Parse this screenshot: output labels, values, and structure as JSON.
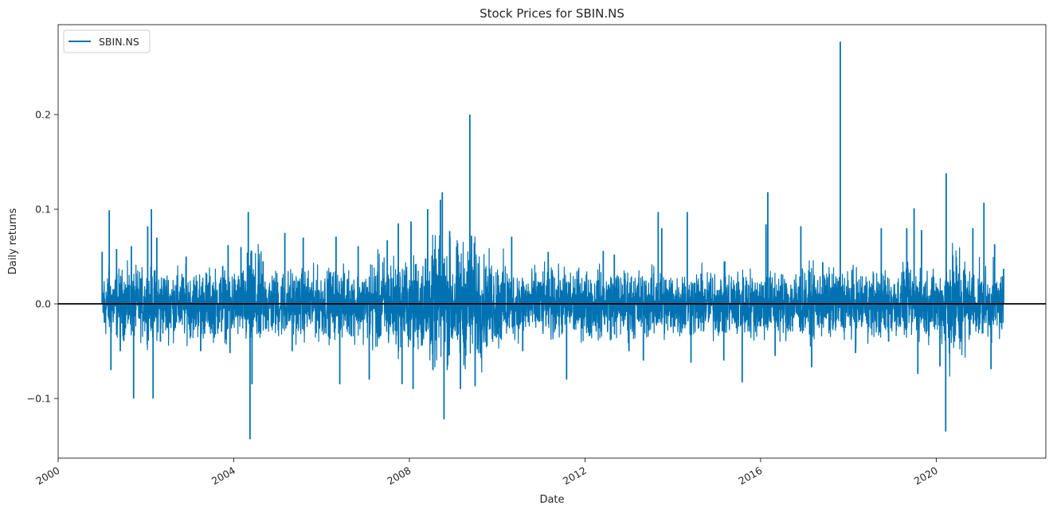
{
  "chart_data": {
    "type": "line",
    "title": "Stock Prices for SBIN.NS",
    "xlabel": "Date",
    "ylabel": "Daily returns",
    "xlim": [
      "2000-01-01",
      "2022-07-01"
    ],
    "ylim": [
      -0.163,
      0.295
    ],
    "x_ticks": [
      "2000-01-01",
      "2004-01-01",
      "2008-01-01",
      "2012-01-01",
      "2016-01-01",
      "2020-01-01"
    ],
    "x_tick_labels": [
      "2000",
      "2004",
      "2008",
      "2012",
      "2016",
      "2020"
    ],
    "y_ticks": [
      -0.1,
      0.0,
      0.1,
      0.2
    ],
    "y_tick_labels": [
      "−0.1",
      "0.0",
      "0.1",
      "0.2"
    ],
    "grid": false,
    "legend": {
      "position": "top-left",
      "entries": [
        "SBIN.NS"
      ]
    },
    "reference_line": {
      "y": 0.0,
      "color": "#000000"
    },
    "colors": {
      "series": "#0072b2",
      "axis": "#000000",
      "background": "#ffffff"
    },
    "series": [
      {
        "name": "SBIN.NS",
        "data_range": [
          "2001-01-01",
          "2021-07-15"
        ],
        "points": [
          [
            "2001-01-01",
            0.055
          ],
          [
            "2001-01-20",
            -0.02
          ],
          [
            "2001-03-01",
            0.099
          ],
          [
            "2001-03-15",
            -0.07
          ],
          [
            "2001-05-01",
            0.058
          ],
          [
            "2001-06-01",
            -0.05
          ],
          [
            "2001-09-01",
            0.061
          ],
          [
            "2001-09-20",
            -0.1
          ],
          [
            "2002-01-15",
            0.082
          ],
          [
            "2002-02-15",
            0.1
          ],
          [
            "2002-03-01",
            -0.1
          ],
          [
            "2002-04-01",
            0.07
          ],
          [
            "2002-05-01",
            -0.04
          ],
          [
            "2002-12-01",
            0.05
          ],
          [
            "2003-04-01",
            -0.05
          ],
          [
            "2003-10-01",
            0.04
          ],
          [
            "2003-11-15",
            0.062
          ],
          [
            "2003-12-01",
            -0.052
          ],
          [
            "2004-03-01",
            0.06
          ],
          [
            "2004-05-01",
            0.097
          ],
          [
            "2004-05-15",
            -0.143
          ],
          [
            "2004-06-01",
            -0.085
          ],
          [
            "2004-09-01",
            0.045
          ],
          [
            "2005-03-01",
            0.075
          ],
          [
            "2005-05-01",
            -0.05
          ],
          [
            "2005-08-01",
            0.07
          ],
          [
            "2006-05-01",
            0.071
          ],
          [
            "2006-06-01",
            -0.085
          ],
          [
            "2006-11-01",
            0.061
          ],
          [
            "2007-02-01",
            -0.08
          ],
          [
            "2007-07-01",
            0.067
          ],
          [
            "2007-10-01",
            0.085
          ],
          [
            "2007-11-01",
            -0.085
          ],
          [
            "2008-01-15",
            0.087
          ],
          [
            "2008-02-01",
            -0.09
          ],
          [
            "2008-06-01",
            0.1
          ],
          [
            "2008-07-15",
            -0.07
          ],
          [
            "2008-09-15",
            0.11
          ],
          [
            "2008-10-01",
            0.118
          ],
          [
            "2008-10-15",
            -0.122
          ],
          [
            "2008-12-01",
            0.077
          ],
          [
            "2009-03-01",
            -0.09
          ],
          [
            "2009-05-18",
            0.2
          ],
          [
            "2009-06-01",
            0.072
          ],
          [
            "2009-07-01",
            -0.087
          ],
          [
            "2010-05-01",
            0.071
          ],
          [
            "2010-08-01",
            -0.05
          ],
          [
            "2011-03-01",
            0.055
          ],
          [
            "2011-08-01",
            -0.08
          ],
          [
            "2012-06-01",
            0.056
          ],
          [
            "2012-09-01",
            0.052
          ],
          [
            "2013-01-01",
            -0.05
          ],
          [
            "2013-05-01",
            -0.06
          ],
          [
            "2013-09-01",
            0.097
          ],
          [
            "2013-10-01",
            0.08
          ],
          [
            "2014-05-01",
            0.097
          ],
          [
            "2014-06-01",
            -0.062
          ],
          [
            "2015-03-01",
            -0.06
          ],
          [
            "2015-08-01",
            -0.083
          ],
          [
            "2016-02-15",
            0.084
          ],
          [
            "2016-03-01",
            0.118
          ],
          [
            "2016-05-01",
            -0.055
          ],
          [
            "2016-12-01",
            0.082
          ],
          [
            "2017-03-01",
            -0.067
          ],
          [
            "2017-06-01",
            0.044
          ],
          [
            "2017-10-25",
            0.277
          ],
          [
            "2018-03-01",
            -0.052
          ],
          [
            "2018-10-01",
            0.08
          ],
          [
            "2018-12-01",
            -0.04
          ],
          [
            "2019-05-01",
            0.08
          ],
          [
            "2019-07-01",
            0.101
          ],
          [
            "2019-08-01",
            -0.074
          ],
          [
            "2019-09-01",
            0.078
          ],
          [
            "2020-02-01",
            -0.066
          ],
          [
            "2020-03-24",
            0.138
          ],
          [
            "2020-03-20",
            -0.135
          ],
          [
            "2020-06-01",
            -0.04
          ],
          [
            "2020-11-01",
            0.08
          ],
          [
            "2021-02-01",
            0.107
          ],
          [
            "2021-04-01",
            -0.069
          ],
          [
            "2021-05-01",
            0.063
          ],
          [
            "2021-07-15",
            0.037
          ]
        ]
      }
    ]
  }
}
